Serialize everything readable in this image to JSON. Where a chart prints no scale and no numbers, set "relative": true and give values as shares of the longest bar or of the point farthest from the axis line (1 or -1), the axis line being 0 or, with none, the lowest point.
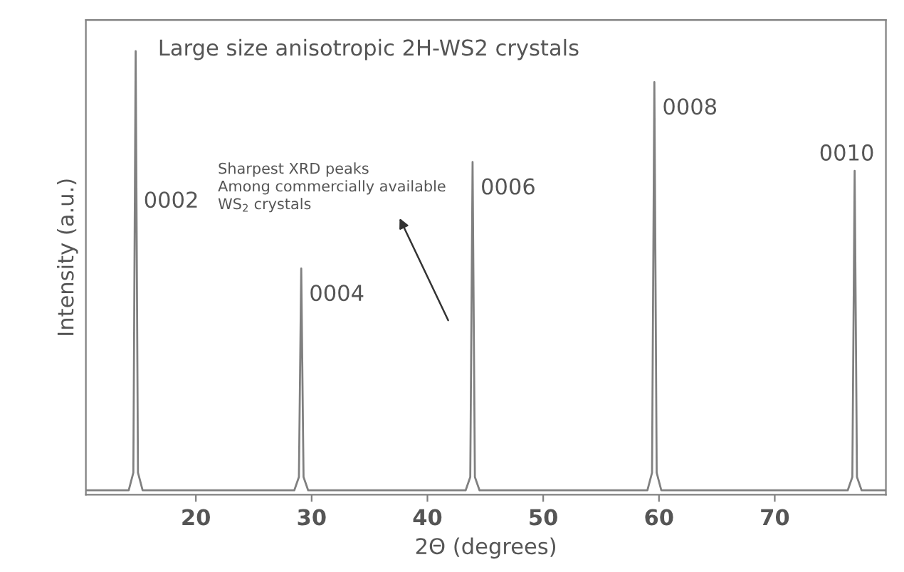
{
  "chart_data": {
    "type": "line",
    "relative": true,
    "xlabel": "2Θ (degrees)",
    "ylabel": "Intensity (a.u.)",
    "xlim": [
      10.5,
      79.6
    ],
    "xticks": [
      20,
      30,
      40,
      50,
      60,
      70
    ],
    "grid": false,
    "marker": "none",
    "line_style": "solid",
    "series": [
      {
        "color": "#808080",
        "x": [
          10.5,
          14.2,
          14.6,
          14.8,
          15.0,
          15.4,
          28.5,
          28.9,
          29.1,
          29.3,
          29.7,
          43.3,
          43.7,
          43.9,
          44.1,
          44.5,
          59.0,
          59.4,
          59.6,
          59.8,
          60.2,
          76.3,
          76.7,
          76.9,
          77.1,
          77.5,
          79.6
        ],
        "values": [
          0.01,
          0.01,
          0.05,
          1,
          0.05,
          0.01,
          0.01,
          0.04,
          0.51,
          0.04,
          0.01,
          0.01,
          0.04,
          0.75,
          0.04,
          0.01,
          0.01,
          0.05,
          0.93,
          0.05,
          0.01,
          0.01,
          0.04,
          0.73,
          0.04,
          0.01,
          0.01
        ]
      }
    ],
    "annotations": [
      "Large size anisotropic 2H-WS2 crystals",
      {
        "text": "0002",
        "x": 14.8,
        "y": 0.72
      },
      {
        "text": "0004",
        "x": 29.1,
        "y": 0.51
      },
      {
        "text": "0006",
        "x": 43.9,
        "y": 0.75
      },
      {
        "text": "0008",
        "x": 59.6,
        "y": 0.93
      },
      {
        "text": "0010",
        "x": 76.9,
        "y": 0.73
      },
      "Sharpest XRD peaks\nAmong commercially available\nWS$_{2}$ crystals"
    ]
  }
}
